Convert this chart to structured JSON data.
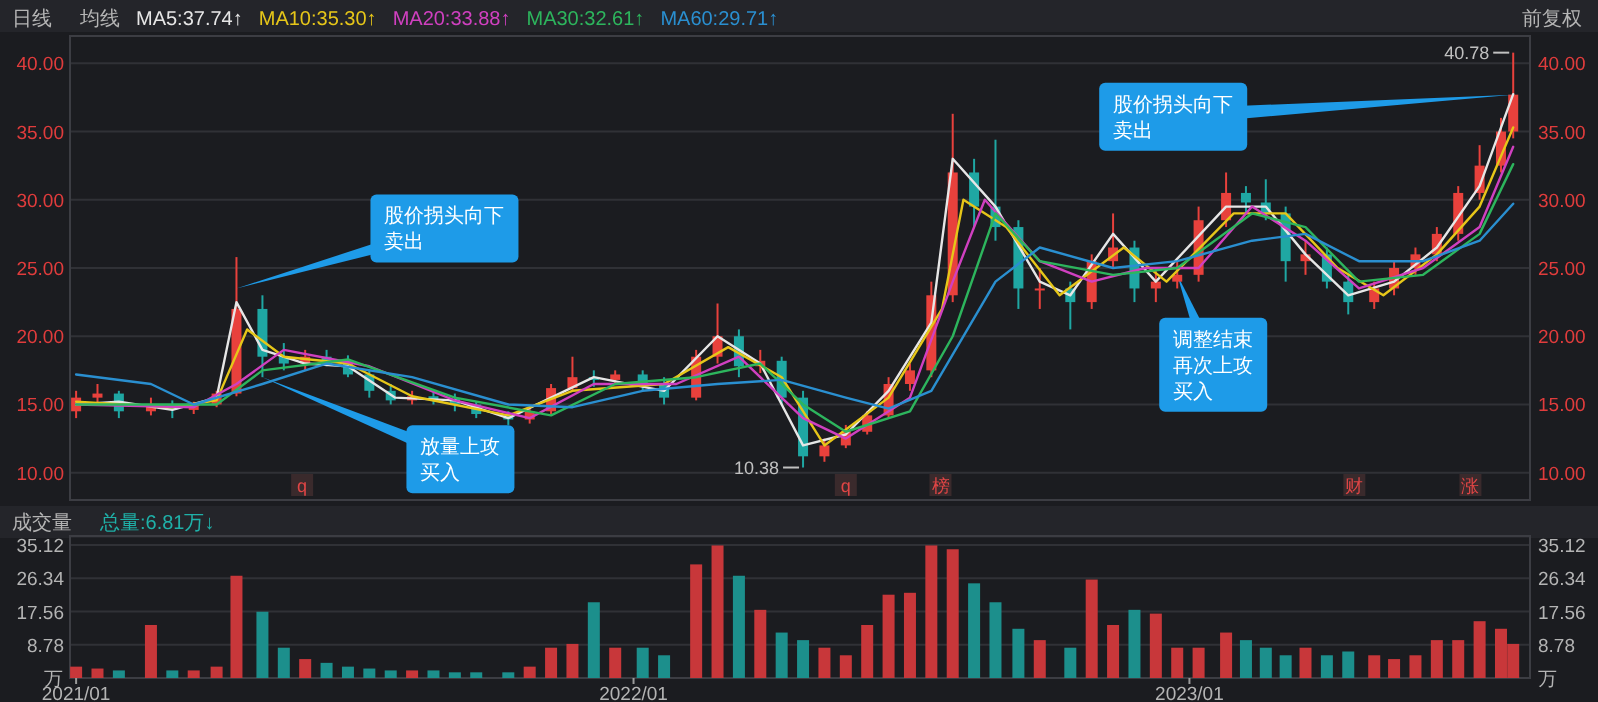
{
  "chart_data": [
    {
      "type": "candlestick",
      "title": "日线",
      "legend_title": "均线",
      "x": [
        "2021-01-04",
        "2021-01-18",
        "2021-02-01",
        "2021-02-22",
        "2021-03-08",
        "2021-03-22",
        "2021-04-06",
        "2021-04-19",
        "2021-05-06",
        "2021-05-20",
        "2021-06-03",
        "2021-06-17",
        "2021-07-01",
        "2021-07-15",
        "2021-07-29",
        "2021-08-12",
        "2021-08-26",
        "2021-09-09",
        "2021-09-23",
        "2021-10-14",
        "2021-10-28",
        "2021-11-11",
        "2021-11-25",
        "2021-12-09",
        "2021-12-23",
        "2022-01-10",
        "2022-01-24",
        "2022-02-14",
        "2022-02-28",
        "2022-03-14",
        "2022-03-28",
        "2022-04-11",
        "2022-04-25",
        "2022-05-09",
        "2022-05-23",
        "2022-06-06",
        "2022-06-20",
        "2022-07-04",
        "2022-07-18",
        "2022-08-01",
        "2022-08-15",
        "2022-08-29",
        "2022-09-13",
        "2022-09-27",
        "2022-10-17",
        "2022-10-31",
        "2022-11-14",
        "2022-11-28",
        "2022-12-12",
        "2022-12-26",
        "2023-01-09",
        "2023-01-27",
        "2023-02-09",
        "2023-02-22",
        "2023-03-07",
        "2023-03-20",
        "2023-04-03",
        "2023-04-17",
        "2023-05-04",
        "2023-05-17",
        "2023-05-31",
        "2023-06-14",
        "2023-06-28",
        "2023-07-12",
        "2023-07-26",
        "2023-08-03"
      ],
      "ohlc": [
        [
          14.5,
          16,
          14,
          15.5
        ],
        [
          15.5,
          16.5,
          15,
          15.8
        ],
        [
          15.8,
          16,
          14,
          14.5
        ],
        [
          14.5,
          15.5,
          14.2,
          15
        ],
        [
          15,
          15.3,
          14,
          14.6
        ],
        [
          14.6,
          15.2,
          14.3,
          15
        ],
        [
          15,
          16,
          14.8,
          15.8
        ],
        [
          15.8,
          25.8,
          15.6,
          22
        ],
        [
          22,
          23,
          17,
          18.5
        ],
        [
          18.5,
          19.5,
          17.5,
          18
        ],
        [
          18,
          19,
          17.5,
          18.5
        ],
        [
          18.5,
          19,
          17.8,
          18.2
        ],
        [
          18.2,
          18.6,
          17,
          17.2
        ],
        [
          17.2,
          17.5,
          15.5,
          16
        ],
        [
          16,
          16.5,
          15,
          15.3
        ],
        [
          15.3,
          16,
          15,
          15.6
        ],
        [
          15.6,
          16,
          15,
          15.4
        ],
        [
          15.4,
          15.8,
          14.5,
          15
        ],
        [
          15,
          15.2,
          14,
          14.3
        ],
        [
          14.3,
          14.5,
          13.5,
          13.9
        ],
        [
          13.9,
          14.8,
          13.6,
          14.5
        ],
        [
          14.5,
          16.5,
          14.3,
          16.2
        ],
        [
          16.2,
          18.5,
          16,
          17
        ],
        [
          17,
          17.5,
          16.3,
          16.8
        ],
        [
          16.8,
          17.5,
          16.5,
          17.2
        ],
        [
          17.2,
          17.5,
          16,
          16.5
        ],
        [
          16.5,
          17,
          15,
          15.5
        ],
        [
          15.5,
          19,
          15.3,
          18.5
        ],
        [
          18.5,
          22.4,
          18,
          20
        ],
        [
          20,
          20.5,
          17,
          17.8
        ],
        [
          17.8,
          19,
          17.3,
          18.2
        ],
        [
          18.2,
          18.5,
          15,
          15.5
        ],
        [
          15.5,
          16,
          10.38,
          11.2
        ],
        [
          11.2,
          12.5,
          10.8,
          12
        ],
        [
          12,
          13.5,
          11.8,
          13
        ],
        [
          13,
          14.5,
          12.8,
          14.2
        ],
        [
          14.2,
          17,
          14,
          16.5
        ],
        [
          16.5,
          18,
          16,
          17.5
        ],
        [
          17.5,
          24,
          17,
          23
        ],
        [
          23,
          36.3,
          22.5,
          32
        ],
        [
          32,
          33,
          28,
          29.5
        ],
        [
          29.5,
          34.4,
          27,
          28
        ],
        [
          28,
          28.5,
          22,
          23.5
        ],
        [
          23.5,
          25,
          22,
          23.5
        ],
        [
          23.5,
          24,
          20.5,
          22.5
        ],
        [
          22.5,
          26,
          22,
          25.5
        ],
        [
          25.5,
          29,
          25,
          26.5
        ],
        [
          26.5,
          27,
          22.5,
          23.5
        ],
        [
          23.5,
          25,
          22.5,
          24
        ],
        [
          24,
          25.5,
          23.5,
          24.5
        ],
        [
          24.5,
          29.5,
          24,
          28.5
        ],
        [
          28.5,
          32,
          28,
          30.5
        ],
        [
          30.5,
          31,
          29,
          29.8
        ],
        [
          29.8,
          31.5,
          28.5,
          29
        ],
        [
          29,
          29.5,
          24,
          25.5
        ],
        [
          25.5,
          27,
          24.5,
          26
        ],
        [
          26,
          26.5,
          23.5,
          24
        ],
        [
          24,
          24.5,
          21.6,
          22.5
        ],
        [
          22.5,
          24,
          22,
          23.5
        ],
        [
          23.5,
          25.5,
          23,
          25
        ],
        [
          25,
          26.5,
          24.5,
          26
        ],
        [
          26,
          28,
          25.5,
          27.5
        ],
        [
          27.5,
          31,
          27,
          30.5
        ],
        [
          30.5,
          34,
          30,
          32.5
        ],
        [
          32.5,
          36,
          32,
          35
        ],
        [
          35,
          40.78,
          34.5,
          37.7
        ]
      ],
      "series": [
        {
          "type": "line",
          "name": "MA5:37.74↑",
          "color": "#e6e6e6",
          "x": [
            "2021-01-04",
            "2021-02-01",
            "2021-03-08",
            "2021-04-06",
            "2021-04-19",
            "2021-05-06",
            "2021-06-03",
            "2021-07-01",
            "2021-08-01",
            "2021-09-09",
            "2021-10-14",
            "2021-11-11",
            "2021-12-09",
            "2022-01-24",
            "2022-02-28",
            "2022-03-28",
            "2022-04-25",
            "2022-05-23",
            "2022-06-20",
            "2022-07-18",
            "2022-08-01",
            "2022-08-29",
            "2022-09-27",
            "2022-10-17",
            "2022-11-14",
            "2022-12-12",
            "2023-01-27",
            "2023-02-22",
            "2023-03-20",
            "2023-04-17",
            "2023-05-17",
            "2023-06-14",
            "2023-07-12",
            "2023-08-03"
          ],
          "values": [
            15,
            15.2,
            14.6,
            15.5,
            22.5,
            19,
            18,
            17.8,
            15.5,
            15.3,
            14,
            15.5,
            17,
            16,
            20,
            18,
            12,
            12.8,
            16,
            21,
            33,
            29.5,
            24,
            23,
            27.5,
            24,
            29.5,
            29.5,
            26,
            23,
            24,
            26.5,
            31,
            37.74
          ]
        },
        {
          "type": "line",
          "name": "MA10:35.30↑",
          "color": "#e6c619",
          "x": [
            "2021-01-04",
            "2021-03-08",
            "2021-04-06",
            "2021-04-26",
            "2021-05-20",
            "2021-07-01",
            "2021-08-12",
            "2021-10-14",
            "2021-11-25",
            "2022-01-24",
            "2022-03-07",
            "2022-04-11",
            "2022-05-09",
            "2022-06-20",
            "2022-07-25",
            "2022-08-08",
            "2022-09-05",
            "2022-10-10",
            "2022-11-21",
            "2022-12-19",
            "2023-02-01",
            "2023-03-07",
            "2023-04-10",
            "2023-05-10",
            "2023-06-14",
            "2023-07-12",
            "2023-08-03"
          ],
          "values": [
            15.2,
            14.8,
            15.3,
            20.5,
            18.5,
            18,
            15.6,
            14.2,
            16,
            16.5,
            19.2,
            17,
            12,
            15.5,
            22,
            30,
            28,
            23,
            26.5,
            24,
            29,
            29,
            25,
            23,
            26,
            29.5,
            35.3
          ]
        },
        {
          "type": "line",
          "name": "MA20:33.88↑",
          "color": "#d040c0",
          "x": [
            "2021-01-04",
            "2021-03-22",
            "2021-04-19",
            "2021-05-20",
            "2021-07-15",
            "2021-09-09",
            "2021-10-28",
            "2021-12-09",
            "2022-02-01",
            "2022-03-14",
            "2022-04-25",
            "2022-05-23",
            "2022-07-04",
            "2022-08-01",
            "2022-08-22",
            "2022-09-27",
            "2022-10-31",
            "2022-12-05",
            "2023-01-09",
            "2023-02-13",
            "2023-03-20",
            "2023-04-24",
            "2023-06-05",
            "2023-07-12",
            "2023-08-03"
          ],
          "values": [
            15,
            14.8,
            16.5,
            19,
            17.8,
            15.3,
            14,
            16.5,
            16.5,
            18.5,
            14,
            12.5,
            15.5,
            24,
            30,
            25.5,
            24,
            25,
            25,
            29.5,
            27,
            23.5,
            25,
            28,
            33.88
          ]
        },
        {
          "type": "line",
          "name": "MA30:32.61↑",
          "color": "#2db55d",
          "x": [
            "2021-01-04",
            "2021-04-06",
            "2021-05-06",
            "2021-07-01",
            "2021-09-09",
            "2021-11-11",
            "2021-12-23",
            "2022-02-14",
            "2022-03-28",
            "2022-04-25",
            "2022-05-23",
            "2022-07-04",
            "2022-08-01",
            "2022-08-29",
            "2022-09-27",
            "2022-11-14",
            "2022-12-26",
            "2023-02-13",
            "2023-03-20",
            "2023-04-24",
            "2023-06-05",
            "2023-07-12",
            "2023-08-03"
          ],
          "values": [
            15,
            15,
            17.5,
            18.3,
            15.5,
            14.2,
            16.5,
            17,
            18,
            15,
            13,
            14.5,
            20,
            29,
            25.5,
            24.5,
            25,
            29,
            28,
            24,
            24.5,
            27.5,
            32.61
          ]
        },
        {
          "type": "line",
          "name": "MA60:29.71↑",
          "color": "#2a8fd0",
          "x": [
            "2021-01-04",
            "2021-02-22",
            "2021-03-22",
            "2021-05-06",
            "2021-06-17",
            "2021-08-12",
            "2021-10-14",
            "2021-11-25",
            "2022-01-10",
            "2022-02-28",
            "2022-04-11",
            "2022-05-23",
            "2022-06-20",
            "2022-07-18",
            "2022-08-29",
            "2022-09-27",
            "2022-11-14",
            "2022-12-26",
            "2023-02-13",
            "2023-03-20",
            "2023-04-24",
            "2023-06-05",
            "2023-07-12",
            "2023-08-03"
          ],
          "values": [
            17.2,
            16.5,
            15,
            16.5,
            18,
            17,
            15,
            14.8,
            16,
            16.5,
            16.8,
            15.5,
            14.7,
            16,
            24,
            26.5,
            25,
            25.5,
            27,
            27.5,
            25.5,
            25.5,
            27,
            29.71
          ]
        }
      ],
      "xlim": [
        "2020-12-31",
        "2023-08-14"
      ],
      "ylim": [
        8,
        42
      ],
      "yticks": [
        {
          "value": 10,
          "label": "10.00"
        },
        {
          "value": 15,
          "label": "15.00"
        },
        {
          "value": 20,
          "label": "20.00"
        },
        {
          "value": 25,
          "label": "25.00"
        },
        {
          "value": 30,
          "label": "30.00"
        },
        {
          "value": 35,
          "label": "35.00"
        },
        {
          "value": 40,
          "label": "40.00"
        }
      ],
      "y2lim": [
        8,
        42
      ],
      "y2ticks": [
        {
          "value": 10,
          "label": "10.00"
        },
        {
          "value": 15,
          "label": "15.00"
        },
        {
          "value": 20,
          "label": "20.00"
        },
        {
          "value": 25,
          "label": "25.00"
        },
        {
          "value": 30,
          "label": "30.00"
        },
        {
          "value": 35,
          "label": "35.00"
        },
        {
          "value": 40,
          "label": "40.00"
        }
      ],
      "tick_labels": "y",
      "grid": "y",
      "legend": "top left",
      "annotations": [
        "前复权",
        {
          "text": "股价拐头向下卖出",
          "x": "2021-04-19",
          "y": 23.5
        },
        {
          "text": "放量上攻买入",
          "x": "2021-05-06",
          "y": 17
        },
        {
          "text": "股价拐头向下卖出",
          "x": "2023-08-03",
          "y": 37.7
        },
        {
          "text": "调整结束再次上攻买入",
          "x": "2022-12-26",
          "y": 24.5
        },
        {
          "text": "40.78",
          "x": "2023-08-03",
          "y": 40.78
        },
        {
          "text": "10.38",
          "x": "2022-04-25",
          "y": 10.38
        },
        {
          "text": "q",
          "x": "2021-06-01"
        },
        {
          "text": "q",
          "x": "2022-05-23"
        },
        {
          "text": "榜",
          "x": "2022-07-24"
        },
        {
          "text": "财",
          "x": "2023-04-21"
        },
        {
          "text": "涨",
          "x": "2023-07-06"
        }
      ]
    },
    {
      "type": "bar",
      "title": "成交量",
      "x": [
        "2021-01-04",
        "2021-01-18",
        "2021-02-01",
        "2021-02-22",
        "2021-03-08",
        "2021-03-22",
        "2021-04-06",
        "2021-04-19",
        "2021-05-06",
        "2021-05-20",
        "2021-06-03",
        "2021-06-17",
        "2021-07-01",
        "2021-07-15",
        "2021-07-29",
        "2021-08-12",
        "2021-08-26",
        "2021-09-09",
        "2021-09-23",
        "2021-10-14",
        "2021-10-28",
        "2021-11-11",
        "2021-11-25",
        "2021-12-09",
        "2021-12-23",
        "2022-01-10",
        "2022-01-24",
        "2022-02-14",
        "2022-02-28",
        "2022-03-14",
        "2022-03-28",
        "2022-04-11",
        "2022-04-25",
        "2022-05-09",
        "2022-05-23",
        "2022-06-06",
        "2022-06-20",
        "2022-07-04",
        "2022-07-18",
        "2022-08-01",
        "2022-08-15",
        "2022-08-29",
        "2022-09-13",
        "2022-09-27",
        "2022-10-17",
        "2022-10-31",
        "2022-11-14",
        "2022-11-28",
        "2022-12-12",
        "2022-12-26",
        "2023-01-09",
        "2023-01-27",
        "2023-02-09",
        "2023-02-22",
        "2023-03-07",
        "2023-03-20",
        "2023-04-03",
        "2023-04-17",
        "2023-05-04",
        "2023-05-17",
        "2023-05-31",
        "2023-06-14",
        "2023-06-28",
        "2023-07-12",
        "2023-07-26",
        "2023-08-03"
      ],
      "series": [
        {
          "name": "总量:6.81万↓",
          "color": "#1fb0a8",
          "values": [
            3,
            2.5,
            2,
            14,
            2,
            2,
            3,
            27,
            17.5,
            8,
            5,
            4,
            3,
            2.5,
            2,
            2,
            2,
            1.5,
            1.5,
            1.5,
            3,
            8,
            9,
            20,
            8,
            8,
            6,
            30,
            35,
            27,
            18,
            12,
            10,
            8,
            6,
            14,
            22,
            22.5,
            35,
            34,
            25,
            20,
            13,
            10,
            8,
            26,
            14,
            18,
            17,
            8,
            8,
            12,
            10,
            8,
            6,
            8,
            6,
            7,
            6,
            5,
            6,
            10,
            10,
            15,
            13,
            9
          ],
          "colors": [
            "#c8373a",
            "#c8373a",
            "#1c8f8c",
            "#c8373a",
            "#1c8f8c",
            "#c8373a",
            "#c8373a",
            "#c8373a",
            "#1c8f8c",
            "#1c8f8c",
            "#c8373a",
            "#1c8f8c",
            "#1c8f8c",
            "#1c8f8c",
            "#1c8f8c",
            "#c8373a",
            "#1c8f8c",
            "#1c8f8c",
            "#1c8f8c",
            "#1c8f8c",
            "#c8373a",
            "#c8373a",
            "#c8373a",
            "#1c8f8c",
            "#c8373a",
            "#1c8f8c",
            "#1c8f8c",
            "#c8373a",
            "#c8373a",
            "#1c8f8c",
            "#c8373a",
            "#1c8f8c",
            "#1c8f8c",
            "#c8373a",
            "#c8373a",
            "#c8373a",
            "#c8373a",
            "#c8373a",
            "#c8373a",
            "#c8373a",
            "#1c8f8c",
            "#1c8f8c",
            "#1c8f8c",
            "#c8373a",
            "#1c8f8c",
            "#c8373a",
            "#c8373a",
            "#1c8f8c",
            "#c8373a",
            "#c8373a",
            "#c8373a",
            "#c8373a",
            "#1c8f8c",
            "#1c8f8c",
            "#1c8f8c",
            "#c8373a",
            "#1c8f8c",
            "#1c8f8c",
            "#c8373a",
            "#c8373a",
            "#c8373a",
            "#c8373a",
            "#c8373a",
            "#c8373a",
            "#c8373a",
            "#c8373a"
          ]
        }
      ],
      "xlim": [
        "2020-12-31",
        "2023-08-14"
      ],
      "xticks": [
        {
          "value": "2021-01-04",
          "label": "2021/01"
        },
        {
          "value": "2022-01-04",
          "label": "2022/01"
        },
        {
          "value": "2023-01-03",
          "label": "2023/01"
        }
      ],
      "ylim": [
        0,
        37.5
      ],
      "yticks": [
        {
          "value": 0,
          "label": "万"
        },
        8.78,
        17.56,
        26.34,
        35.12
      ],
      "y2lim": [
        0,
        37.5
      ],
      "y2ticks": [
        {
          "value": 0,
          "label": "万"
        },
        8.78,
        17.56,
        26.34,
        35.12
      ],
      "grid": "y",
      "legend": "top left"
    }
  ]
}
